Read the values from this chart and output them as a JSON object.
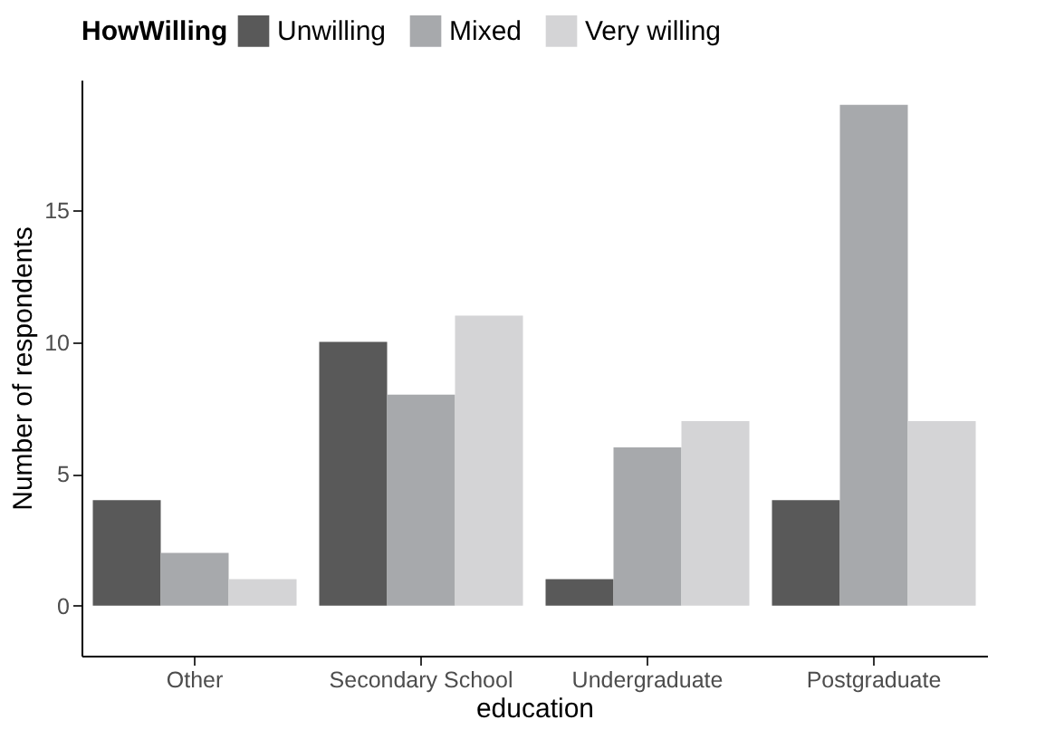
{
  "chart_data": {
    "type": "bar",
    "xlabel": "education",
    "ylabel": "Number of respondents",
    "legend_title": "HowWilling",
    "legend": "top",
    "grid": false,
    "categories": [
      "Other",
      "Secondary School",
      "Undergraduate",
      "Postgraduate"
    ],
    "series": [
      {
        "name": "Unwilling",
        "color": "#595959",
        "values": [
          4,
          10,
          1,
          4
        ]
      },
      {
        "name": "Mixed",
        "color": "#a7a9ac",
        "values": [
          2,
          8,
          6,
          19
        ]
      },
      {
        "name": "Very willing",
        "color": "#d4d4d6",
        "values": [
          1,
          11,
          7,
          7
        ]
      }
    ],
    "ylim": [
      -1.9,
      19.95
    ],
    "yticks": [
      0,
      5,
      10,
      15
    ]
  }
}
